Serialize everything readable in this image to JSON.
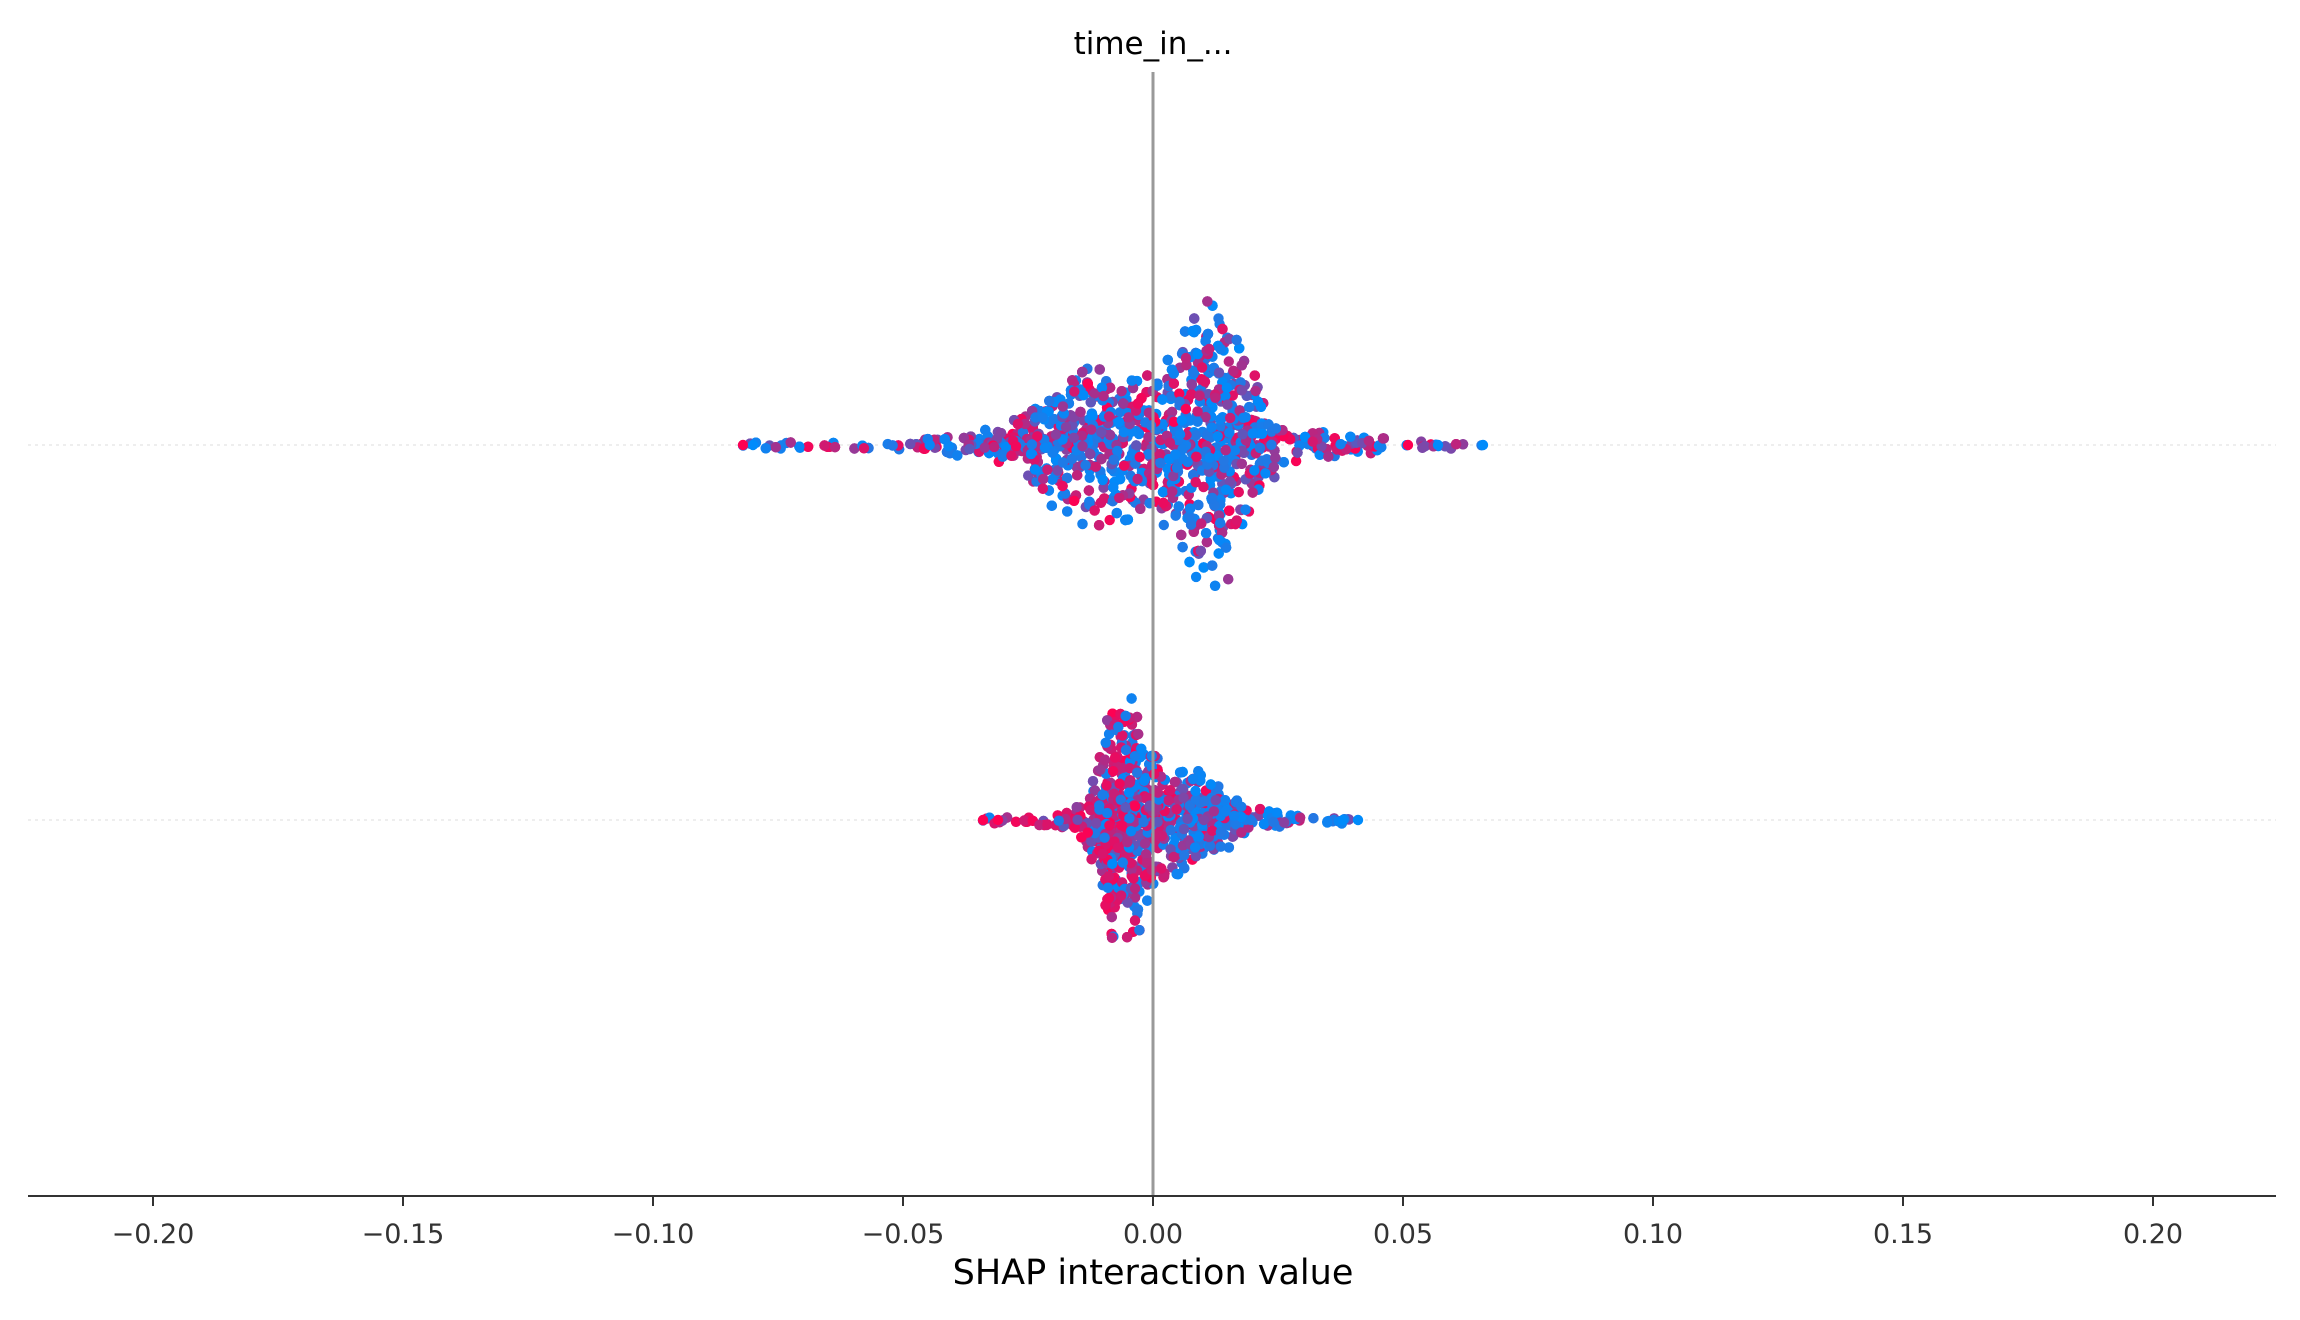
{
  "chart_data": {
    "type": "scatter",
    "subtype": "beeswarm",
    "title": "time_in_...",
    "xlabel": "SHAP interaction value",
    "ylabel": "",
    "xlim": [
      -0.225,
      0.225
    ],
    "x_ticks": [
      -0.2,
      -0.15,
      -0.1,
      -0.05,
      0.0,
      0.05,
      0.1,
      0.15,
      0.2
    ],
    "x_tick_labels": [
      "−0.20",
      "−0.15",
      "−0.10",
      "−0.05",
      "0.00",
      "0.05",
      "0.10",
      "0.15",
      "0.20"
    ],
    "zero_line": 0.0,
    "grid": false,
    "legend": "none",
    "colors": {
      "low_feature_value": "#008bfb",
      "high_feature_value": "#ff0052",
      "mid_feature_value": "#8a4bd0",
      "zero_line": "#999999",
      "axis": "#333333",
      "row_guide": "#eeeeee"
    },
    "series": [
      {
        "row": 1,
        "x_min": -0.082,
        "x_max": 0.066,
        "peak_x": 0.012,
        "outliers": [
          {
            "x": -0.082,
            "color": "#ff0052"
          },
          {
            "x": -0.08,
            "color": "#008bfb"
          },
          {
            "x": 0.051,
            "color": "#ff0052"
          },
          {
            "x": 0.057,
            "color": "#008bfb"
          },
          {
            "x": 0.066,
            "color": "#008bfb"
          }
        ]
      },
      {
        "row": 2,
        "x_min": -0.034,
        "x_max": 0.041,
        "peak_x": -0.006,
        "outliers": [
          {
            "x": -0.034,
            "color": "#ff0052"
          },
          {
            "x": -0.031,
            "color": "#ff0052"
          },
          {
            "x": 0.038,
            "color": "#008bfb"
          },
          {
            "x": 0.041,
            "color": "#008bfb"
          }
        ]
      }
    ]
  }
}
